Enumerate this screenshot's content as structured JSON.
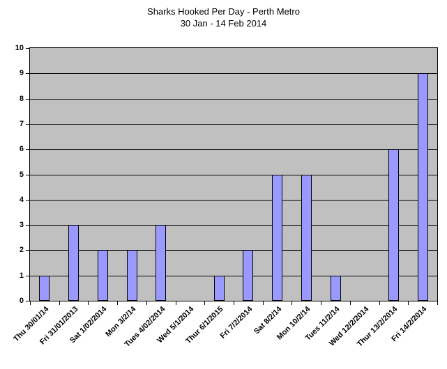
{
  "chart_data": {
    "type": "bar",
    "title": "Sharks Hooked Per Day - Perth Metro",
    "subtitle": "30 Jan - 14 Feb 2014",
    "categories": [
      "Thu 30/01/14",
      "Fri 31/01/2013",
      "Sat 1/02/2014",
      "Mon 3/2/14",
      "Tues 4/02/2014",
      "Wed 5/1/2014",
      "Thur 6/1/2015",
      "Fri 7/2/2014",
      "Sat 8/2/14",
      "Mon 10/2/14",
      "Tues 11/2/14",
      "Wed 12/2/2014",
      "Thur 13/2/2014",
      "Fri 14/2/2014"
    ],
    "values": [
      1,
      3,
      2,
      2,
      3,
      0,
      1,
      2,
      5,
      5,
      1,
      0,
      6,
      9
    ],
    "xlabel": "",
    "ylabel": "",
    "ylim": [
      0,
      10
    ],
    "ytick_step": 1,
    "grid": true,
    "legend": "none",
    "plot_bg": "#C0C0C0",
    "bar_color": "#9999FF",
    "bar_border": "#000000"
  }
}
